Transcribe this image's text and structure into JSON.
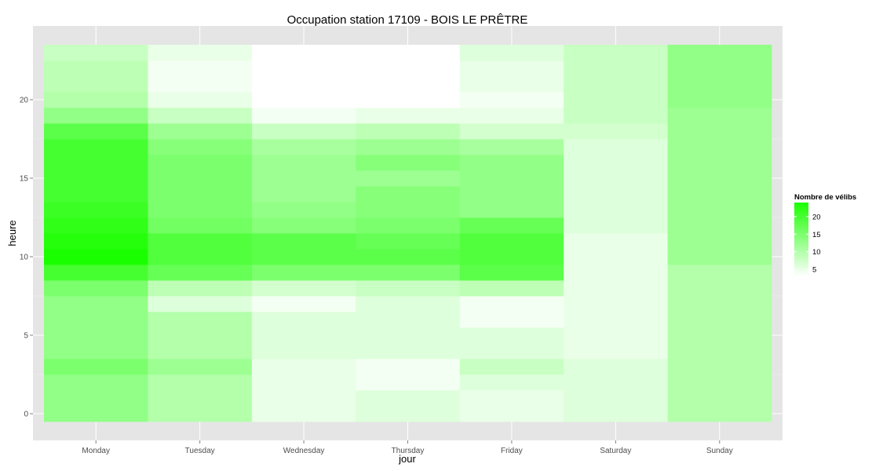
{
  "chart_data": {
    "type": "heatmap",
    "title": "Occupation station 17109 - BOIS LE PRÊTRE",
    "xlabel": "jour",
    "ylabel": "heure",
    "x_categories": [
      "Monday",
      "Tuesday",
      "Wednesday",
      "Thursday",
      "Friday",
      "Saturday",
      "Sunday"
    ],
    "y_values": [
      0,
      1,
      2,
      3,
      4,
      5,
      6,
      7,
      8,
      9,
      10,
      11,
      12,
      13,
      14,
      15,
      16,
      17,
      18,
      19,
      20,
      21,
      22,
      23
    ],
    "y_ticks": [
      0,
      5,
      10,
      15,
      20
    ],
    "ylim": [
      -0.5,
      23.5
    ],
    "legend": {
      "title": "Nombre de vélibs",
      "breaks": [
        5,
        10,
        15,
        20
      ],
      "range": [
        3,
        24
      ],
      "low_color": "#ffffff",
      "high_color": "#1aff00",
      "position": "right"
    },
    "grid": true,
    "values": [
      [
        13,
        10,
        5,
        6,
        5,
        6,
        10
      ],
      [
        13,
        10,
        5,
        6,
        5,
        6,
        10
      ],
      [
        13,
        10,
        5,
        4,
        6,
        6,
        10
      ],
      [
        15,
        12,
        5,
        4,
        8,
        6,
        10
      ],
      [
        13,
        10,
        6,
        6,
        6,
        5,
        10
      ],
      [
        13,
        10,
        6,
        6,
        6,
        5,
        10
      ],
      [
        13,
        10,
        6,
        6,
        4,
        5,
        10
      ],
      [
        13,
        6,
        4,
        6,
        4,
        5,
        10
      ],
      [
        15,
        9,
        7,
        8,
        9,
        5,
        10
      ],
      [
        20,
        17,
        15,
        15,
        18,
        5,
        10
      ],
      [
        24,
        19,
        18,
        18,
        19,
        5,
        12
      ],
      [
        23,
        19,
        18,
        17,
        19,
        5,
        12
      ],
      [
        22,
        16,
        14,
        15,
        17,
        6,
        12
      ],
      [
        21,
        15,
        13,
        14,
        13,
        6,
        12
      ],
      [
        20,
        15,
        12,
        14,
        13,
        6,
        12
      ],
      [
        20,
        15,
        12,
        12,
        13,
        6,
        12
      ],
      [
        20,
        15,
        12,
        14,
        13,
        6,
        12
      ],
      [
        20,
        14,
        11,
        12,
        11,
        6,
        12
      ],
      [
        18,
        12,
        8,
        9,
        7,
        7,
        12
      ],
      [
        13,
        8,
        4,
        5,
        5,
        8,
        12
      ],
      [
        10,
        5,
        3,
        3,
        4,
        8,
        13
      ],
      [
        9,
        4,
        3,
        3,
        5,
        8,
        13
      ],
      [
        9,
        4,
        3,
        3,
        5,
        8,
        13
      ],
      [
        8,
        5,
        3,
        3,
        6,
        8,
        13
      ]
    ]
  }
}
